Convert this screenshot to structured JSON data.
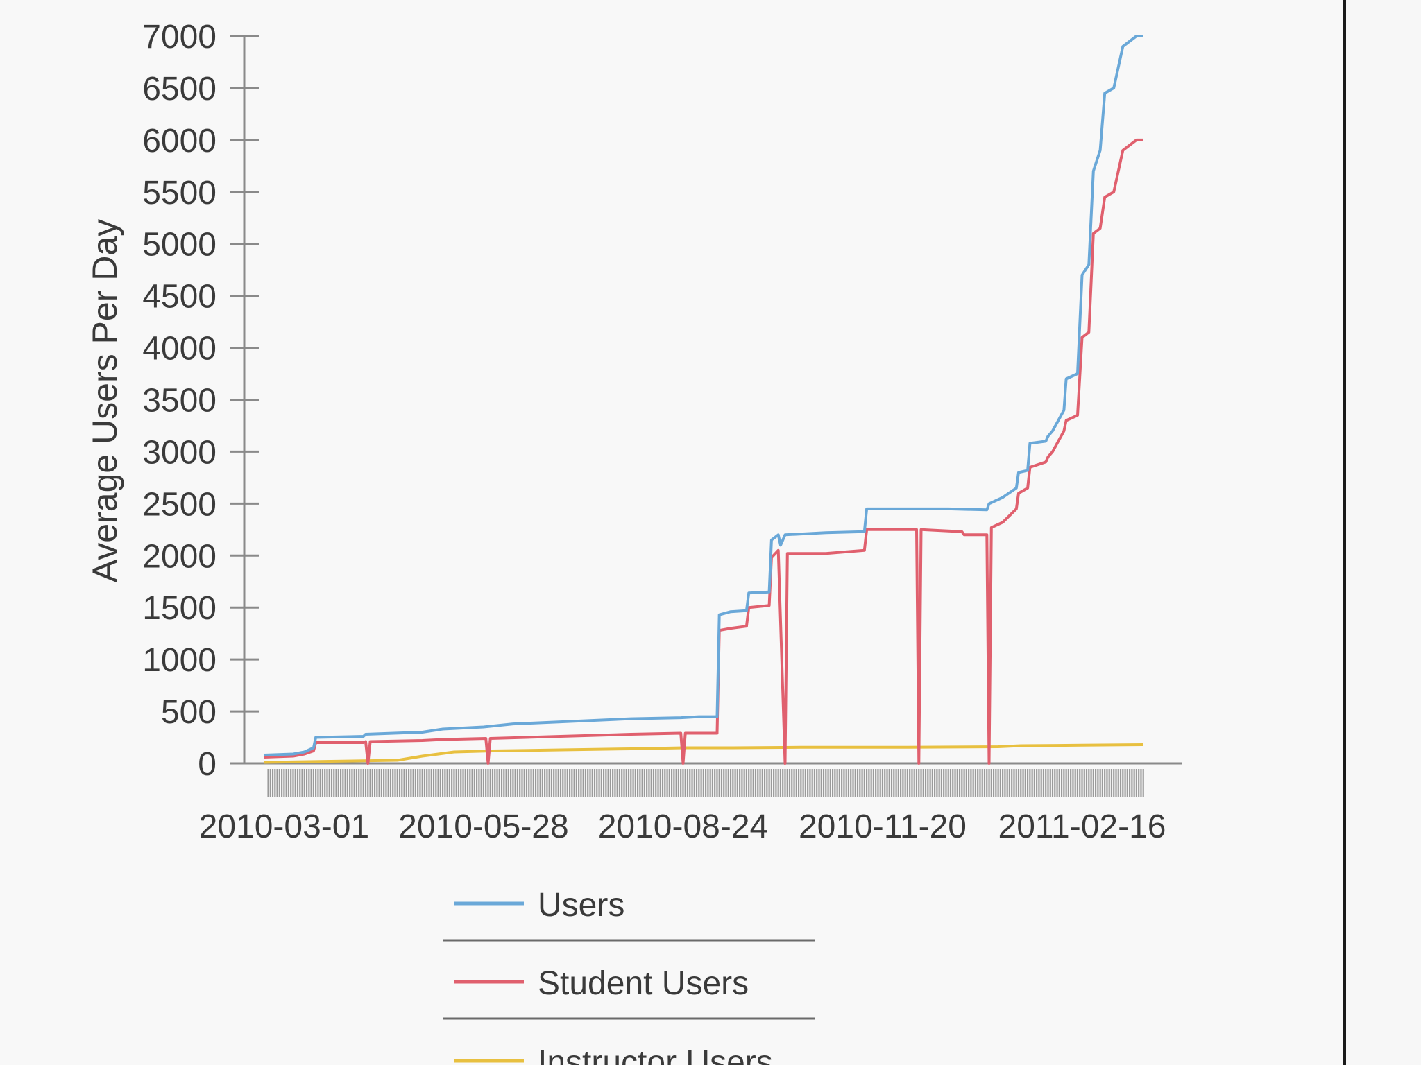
{
  "chart_data": {
    "type": "line",
    "ylabel": "Average Users Per Day",
    "xlabel": "",
    "ylim": [
      0,
      7000
    ],
    "yticks": [
      0,
      500,
      1000,
      1500,
      2000,
      2500,
      3000,
      3500,
      4000,
      4500,
      5000,
      5500,
      6000,
      6500,
      7000
    ],
    "xlim": [
      "2010-02-20",
      "2011-03-31"
    ],
    "xticks": [
      "2010-03-01",
      "2010-05-28",
      "2010-08-24",
      "2010-11-20",
      "2011-02-16"
    ],
    "grid": false,
    "legend": "bottom",
    "series": [
      {
        "name": "Users",
        "color": "#6aa8d8",
        "points": [
          [
            "2010-02-20",
            80
          ],
          [
            "2010-03-05",
            90
          ],
          [
            "2010-03-10",
            110
          ],
          [
            "2010-03-14",
            150
          ],
          [
            "2010-03-15",
            250
          ],
          [
            "2010-04-05",
            260
          ],
          [
            "2010-04-06",
            280
          ],
          [
            "2010-05-01",
            300
          ],
          [
            "2010-05-10",
            330
          ],
          [
            "2010-05-28",
            350
          ],
          [
            "2010-06-10",
            380
          ],
          [
            "2010-07-01",
            400
          ],
          [
            "2010-08-01",
            430
          ],
          [
            "2010-08-23",
            440
          ],
          [
            "2010-08-31",
            450
          ],
          [
            "2010-09-08",
            450
          ],
          [
            "2010-09-09",
            1430
          ],
          [
            "2010-09-14",
            1460
          ],
          [
            "2010-09-21",
            1470
          ],
          [
            "2010-09-22",
            1640
          ],
          [
            "2010-10-01",
            1650
          ],
          [
            "2010-10-02",
            2150
          ],
          [
            "2010-10-05",
            2200
          ],
          [
            "2010-10-06",
            2100
          ],
          [
            "2010-10-08",
            2200
          ],
          [
            "2010-10-26",
            2220
          ],
          [
            "2010-11-12",
            2230
          ],
          [
            "2010-11-13",
            2450
          ],
          [
            "2010-12-05",
            2450
          ],
          [
            "2010-12-19",
            2450
          ],
          [
            "2011-01-05",
            2440
          ],
          [
            "2011-01-06",
            2500
          ],
          [
            "2011-01-12",
            2560
          ],
          [
            "2011-01-18",
            2650
          ],
          [
            "2011-01-19",
            2800
          ],
          [
            "2011-01-23",
            2820
          ],
          [
            "2011-01-24",
            3080
          ],
          [
            "2011-01-31",
            3100
          ],
          [
            "2011-02-01",
            3150
          ],
          [
            "2011-02-03",
            3200
          ],
          [
            "2011-02-08",
            3400
          ],
          [
            "2011-02-09",
            3700
          ],
          [
            "2011-02-14",
            3750
          ],
          [
            "2011-02-16",
            4700
          ],
          [
            "2011-02-19",
            4800
          ],
          [
            "2011-02-21",
            5700
          ],
          [
            "2011-02-24",
            5900
          ],
          [
            "2011-02-26",
            6450
          ],
          [
            "2011-03-02",
            6500
          ],
          [
            "2011-03-06",
            6900
          ],
          [
            "2011-03-12",
            7000
          ],
          [
            "2011-03-15",
            7000
          ]
        ]
      },
      {
        "name": "Student Users",
        "color": "#e0606e",
        "points": [
          [
            "2010-02-20",
            60
          ],
          [
            "2010-03-05",
            70
          ],
          [
            "2010-03-10",
            90
          ],
          [
            "2010-03-14",
            120
          ],
          [
            "2010-03-15",
            200
          ],
          [
            "2010-04-05",
            200
          ],
          [
            "2010-04-06",
            210
          ],
          [
            "2010-04-07",
            0
          ],
          [
            "2010-04-08",
            210
          ],
          [
            "2010-05-01",
            220
          ],
          [
            "2010-05-10",
            230
          ],
          [
            "2010-05-29",
            240
          ],
          [
            "2010-05-30",
            0
          ],
          [
            "2010-05-31",
            240
          ],
          [
            "2010-07-01",
            260
          ],
          [
            "2010-08-01",
            280
          ],
          [
            "2010-08-23",
            290
          ],
          [
            "2010-08-24",
            0
          ],
          [
            "2010-08-25",
            290
          ],
          [
            "2010-09-08",
            290
          ],
          [
            "2010-09-09",
            1280
          ],
          [
            "2010-09-14",
            1300
          ],
          [
            "2010-09-21",
            1320
          ],
          [
            "2010-09-22",
            1500
          ],
          [
            "2010-10-01",
            1520
          ],
          [
            "2010-10-02",
            1980
          ],
          [
            "2010-10-05",
            2050
          ],
          [
            "2010-10-08",
            0
          ],
          [
            "2010-10-09",
            2020
          ],
          [
            "2010-10-26",
            2020
          ],
          [
            "2010-11-12",
            2050
          ],
          [
            "2010-11-13",
            2250
          ],
          [
            "2010-12-05",
            2250
          ],
          [
            "2010-12-06",
            0
          ],
          [
            "2010-12-07",
            2250
          ],
          [
            "2010-12-25",
            2230
          ],
          [
            "2010-12-26",
            2200
          ],
          [
            "2011-01-05",
            2200
          ],
          [
            "2011-01-06",
            0
          ],
          [
            "2011-01-07",
            2270
          ],
          [
            "2011-01-12",
            2320
          ],
          [
            "2011-01-18",
            2450
          ],
          [
            "2011-01-19",
            2600
          ],
          [
            "2011-01-23",
            2650
          ],
          [
            "2011-01-24",
            2850
          ],
          [
            "2011-01-31",
            2900
          ],
          [
            "2011-02-01",
            2950
          ],
          [
            "2011-02-03",
            3000
          ],
          [
            "2011-02-08",
            3200
          ],
          [
            "2011-02-09",
            3300
          ],
          [
            "2011-02-14",
            3350
          ],
          [
            "2011-02-16",
            4100
          ],
          [
            "2011-02-19",
            4150
          ],
          [
            "2011-02-21",
            5100
          ],
          [
            "2011-02-24",
            5150
          ],
          [
            "2011-02-26",
            5450
          ],
          [
            "2011-03-02",
            5500
          ],
          [
            "2011-03-06",
            5900
          ],
          [
            "2011-03-12",
            6000
          ],
          [
            "2011-03-15",
            6000
          ]
        ]
      },
      {
        "name": "Instructor Users",
        "color": "#e8c040",
        "points": [
          [
            "2010-02-20",
            10
          ],
          [
            "2010-04-20",
            30
          ],
          [
            "2010-05-01",
            70
          ],
          [
            "2010-05-15",
            110
          ],
          [
            "2010-06-01",
            120
          ],
          [
            "2010-07-01",
            130
          ],
          [
            "2010-08-01",
            140
          ],
          [
            "2010-08-24",
            150
          ],
          [
            "2010-09-15",
            150
          ],
          [
            "2010-10-15",
            155
          ],
          [
            "2010-12-01",
            155
          ],
          [
            "2011-01-10",
            160
          ],
          [
            "2011-01-20",
            170
          ],
          [
            "2011-02-16",
            175
          ],
          [
            "2011-03-15",
            180
          ]
        ]
      }
    ]
  }
}
